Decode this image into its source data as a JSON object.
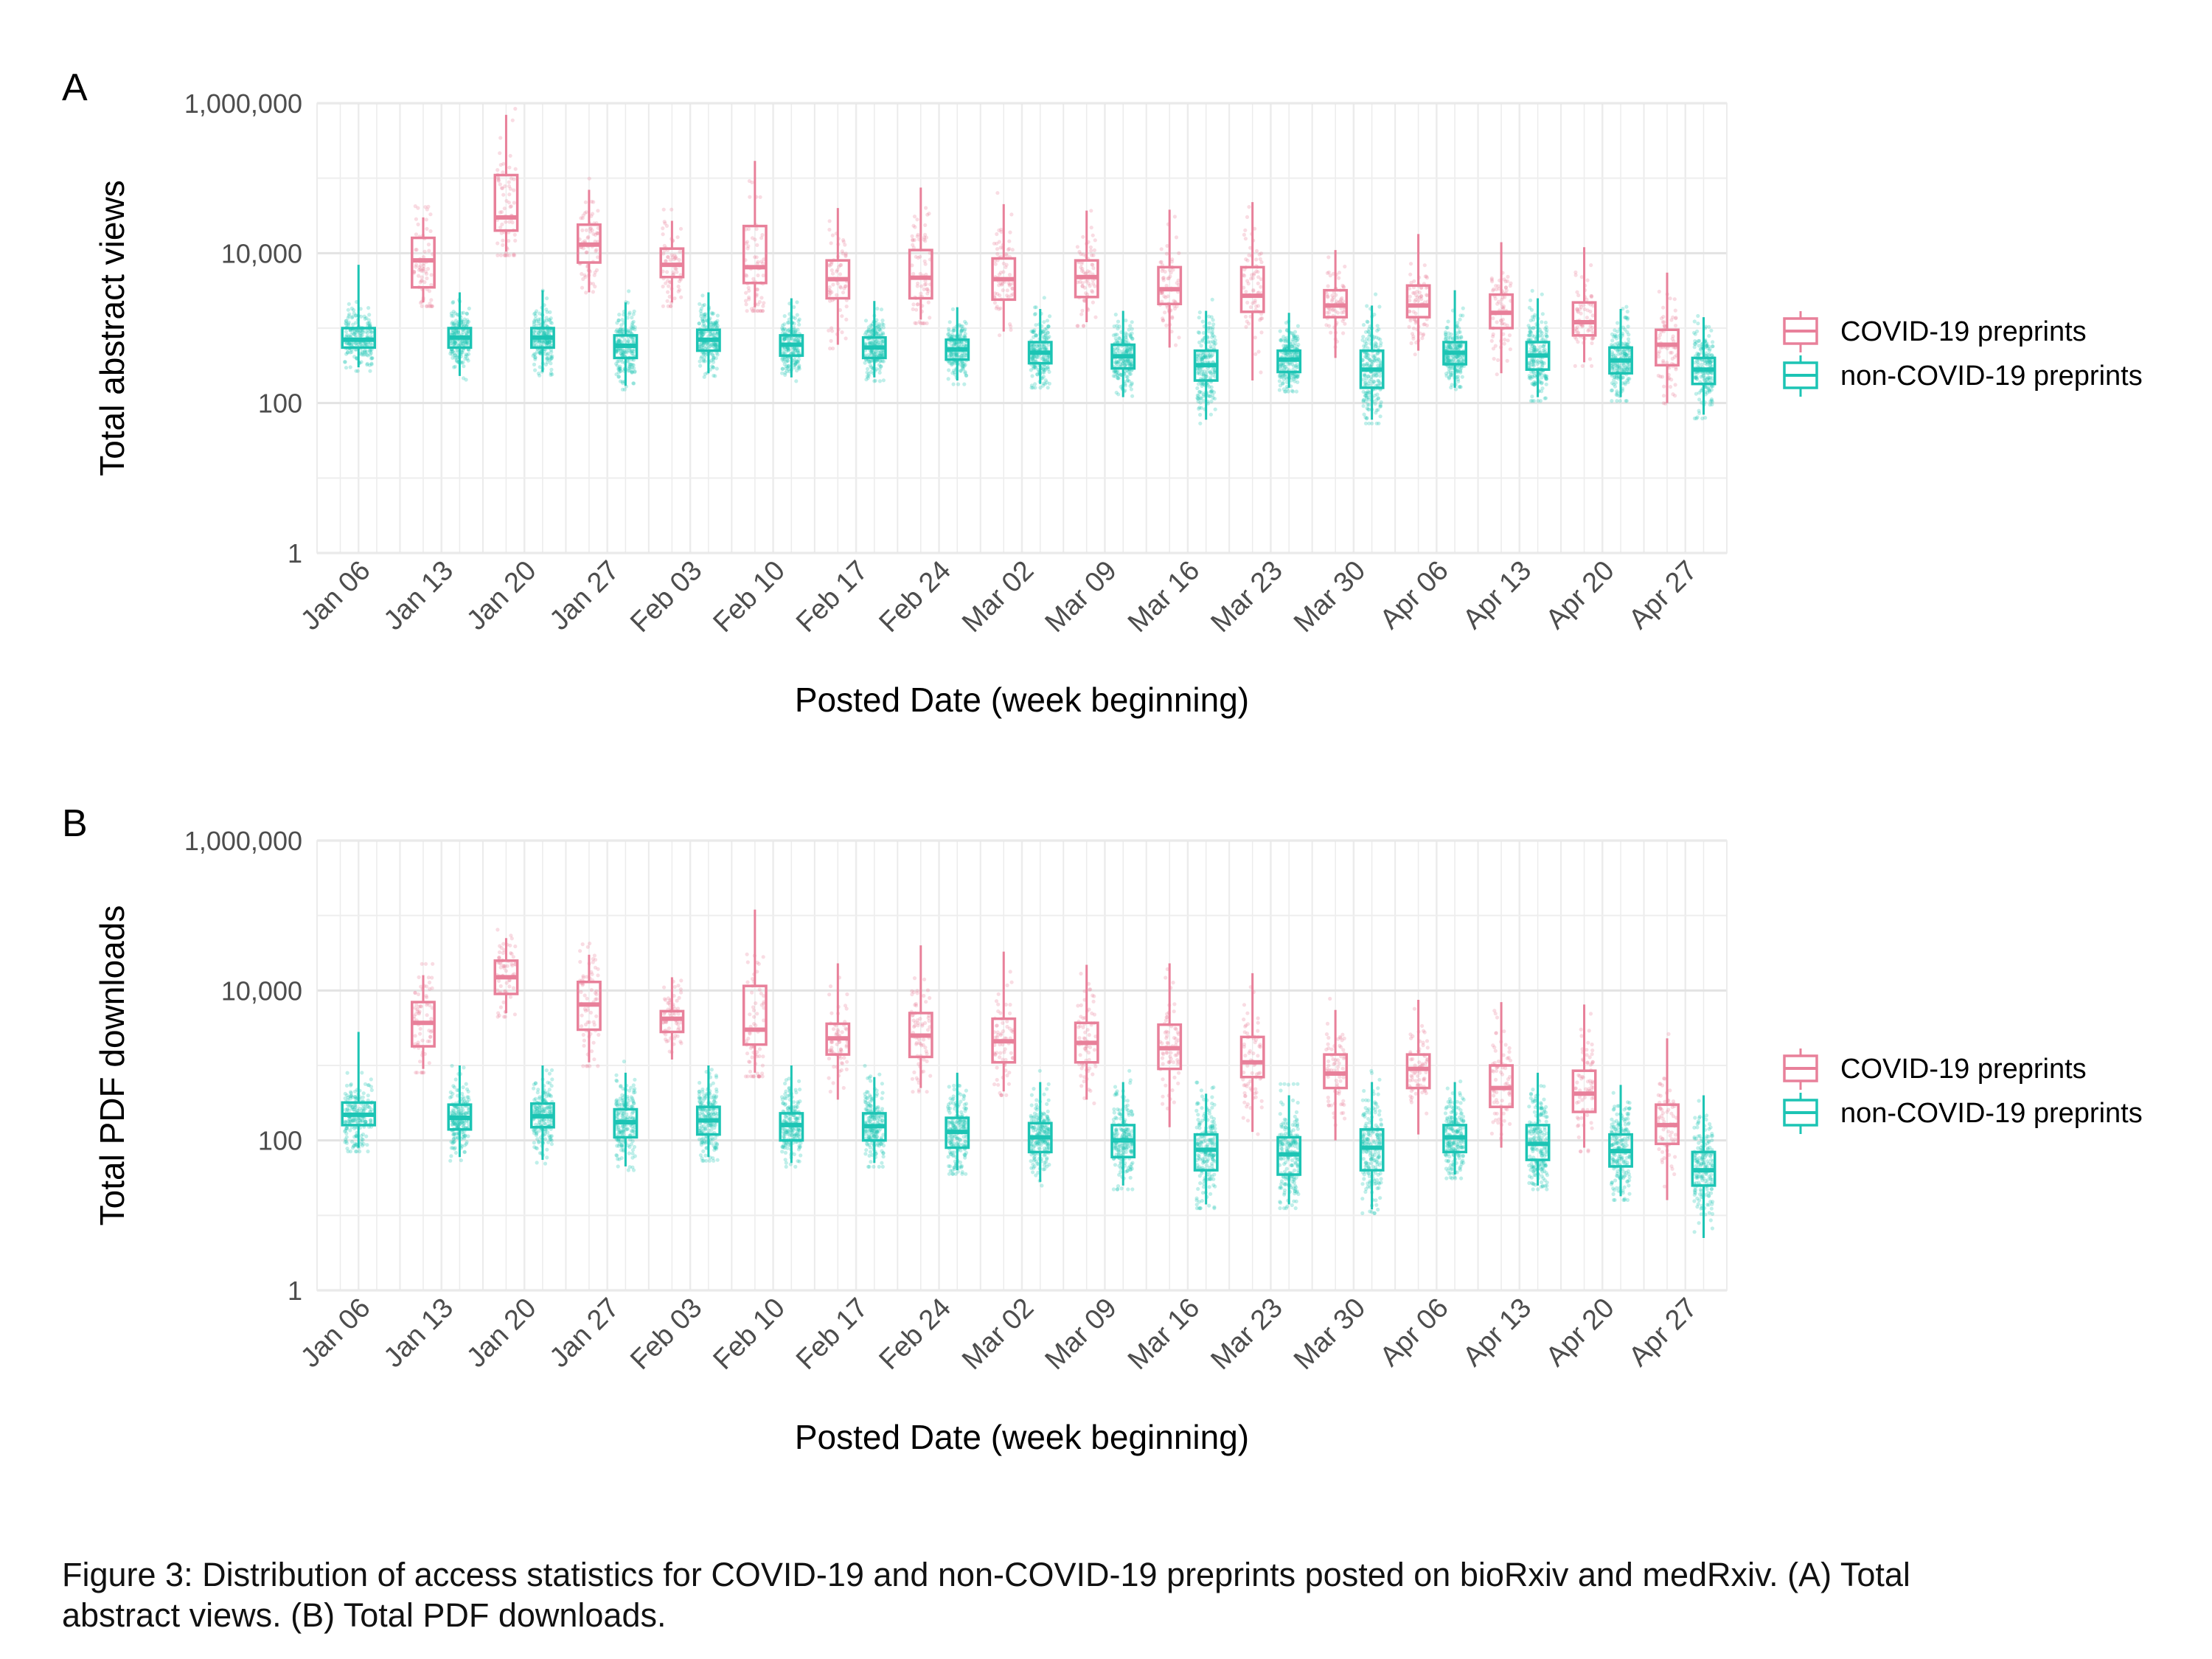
{
  "chart_data": [
    {
      "panel": "A",
      "type": "boxplot",
      "title": "",
      "xlabel": "Posted Date (week beginning)",
      "ylabel": "Total abstract views",
      "y_scale": "log10",
      "ylim": [
        1,
        1000000
      ],
      "y_ticks": [
        1,
        100,
        10000,
        1000000
      ],
      "y_tick_labels": [
        "1",
        "100",
        "10,000",
        "1,000,000"
      ],
      "categories": [
        "Jan 06",
        "Jan 13",
        "Jan 20",
        "Jan 27",
        "Feb 03",
        "Feb 10",
        "Feb 17",
        "Feb 24",
        "Mar 02",
        "Mar 09",
        "Mar 16",
        "Mar 23",
        "Mar 30",
        "Apr 06",
        "Apr 13",
        "Apr 20",
        "Apr 27"
      ],
      "grid": true,
      "legend_position": "right",
      "series": [
        {
          "name": "COVID-19 preprints",
          "color": "#E8809A",
          "boxes": [
            null,
            {
              "min": 2200,
              "q1": 3500,
              "median": 8000,
              "q3": 16000,
              "max": 30000
            },
            {
              "min": 10500,
              "q1": 20000,
              "median": 30000,
              "q3": 110000,
              "max": 700000
            },
            {
              "min": 3000,
              "q1": 7500,
              "median": 13000,
              "q3": 24000,
              "max": 70000
            },
            {
              "min": 2200,
              "q1": 4800,
              "median": 7000,
              "q3": 11500,
              "max": 27000
            },
            {
              "min": 1900,
              "q1": 4000,
              "median": 6500,
              "q3": 23000,
              "max": 170000
            },
            {
              "min": 600,
              "q1": 2500,
              "median": 4500,
              "q3": 8000,
              "max": 40000
            },
            {
              "min": 1300,
              "q1": 2500,
              "median": 4700,
              "q3": 11000,
              "max": 75000
            },
            {
              "min": 900,
              "q1": 2400,
              "median": 4500,
              "q3": 8500,
              "max": 45000
            },
            {
              "min": 1200,
              "q1": 2600,
              "median": 4800,
              "q3": 8000,
              "max": 37000
            },
            {
              "min": 550,
              "q1": 2100,
              "median": 3300,
              "q3": 6500,
              "max": 38000
            },
            {
              "min": 200,
              "q1": 1650,
              "median": 2700,
              "q3": 6500,
              "max": 48000
            },
            {
              "min": 400,
              "q1": 1400,
              "median": 2000,
              "q3": 3200,
              "max": 11000
            },
            {
              "min": 500,
              "q1": 1400,
              "median": 2000,
              "q3": 3700,
              "max": 18000
            },
            {
              "min": 250,
              "q1": 1000,
              "median": 1600,
              "q3": 2800,
              "max": 14000
            },
            {
              "min": 350,
              "q1": 800,
              "median": 1200,
              "q3": 2200,
              "max": 12000
            },
            {
              "min": 100,
              "q1": 320,
              "median": 600,
              "q3": 950,
              "max": 5500
            }
          ]
        },
        {
          "name": "non-COVID-19 preprints",
          "color": "#1CC4B4",
          "boxes": [
            {
              "min": 300,
              "q1": 550,
              "median": 700,
              "q3": 1000,
              "max": 7000
            },
            {
              "min": 230,
              "q1": 550,
              "median": 750,
              "q3": 1000,
              "max": 3000
            },
            {
              "min": 260,
              "q1": 550,
              "median": 750,
              "q3": 1000,
              "max": 3200
            },
            {
              "min": 170,
              "q1": 400,
              "median": 580,
              "q3": 800,
              "max": 2200
            },
            {
              "min": 250,
              "q1": 500,
              "median": 700,
              "q3": 950,
              "max": 3000
            },
            {
              "min": 220,
              "q1": 430,
              "median": 600,
              "q3": 800,
              "max": 2500
            },
            {
              "min": 220,
              "q1": 400,
              "median": 550,
              "q3": 750,
              "max": 2300
            },
            {
              "min": 200,
              "q1": 380,
              "median": 520,
              "q3": 700,
              "max": 1900
            },
            {
              "min": 180,
              "q1": 340,
              "median": 470,
              "q3": 650,
              "max": 1800
            },
            {
              "min": 120,
              "q1": 290,
              "median": 420,
              "q3": 600,
              "max": 1700
            },
            {
              "min": 60,
              "q1": 200,
              "median": 320,
              "q3": 500,
              "max": 1700
            },
            {
              "min": 160,
              "q1": 260,
              "median": 380,
              "q3": 500,
              "max": 1600
            },
            {
              "min": 60,
              "q1": 160,
              "median": 280,
              "q3": 500,
              "max": 2000
            },
            {
              "min": 160,
              "q1": 330,
              "median": 470,
              "q3": 650,
              "max": 3200
            },
            {
              "min": 120,
              "q1": 280,
              "median": 430,
              "q3": 650,
              "max": 2500
            },
            {
              "min": 120,
              "q1": 250,
              "median": 370,
              "q3": 550,
              "max": 1800
            },
            {
              "min": 70,
              "q1": 180,
              "median": 280,
              "q3": 400,
              "max": 1400
            }
          ]
        }
      ]
    },
    {
      "panel": "B",
      "type": "boxplot",
      "title": "",
      "xlabel": "Posted Date (week beginning)",
      "ylabel": "Total PDF downloads",
      "y_scale": "log10",
      "ylim": [
        1,
        1000000
      ],
      "y_ticks": [
        1,
        100,
        10000,
        1000000
      ],
      "y_tick_labels": [
        "1",
        "100",
        "10,000",
        "1,000,000"
      ],
      "categories": [
        "Jan 06",
        "Jan 13",
        "Jan 20",
        "Jan 27",
        "Feb 03",
        "Feb 10",
        "Feb 17",
        "Feb 24",
        "Mar 02",
        "Mar 09",
        "Mar 16",
        "Mar 23",
        "Mar 30",
        "Apr 06",
        "Apr 13",
        "Apr 20",
        "Apr 27"
      ],
      "grid": true,
      "legend_position": "right",
      "series": [
        {
          "name": "COVID-19 preprints",
          "color": "#E8809A",
          "boxes": [
            null,
            {
              "min": 900,
              "q1": 1800,
              "median": 3700,
              "q3": 7000,
              "max": 16000
            },
            {
              "min": 5000,
              "q1": 9000,
              "median": 15000,
              "q3": 25000,
              "max": 50000
            },
            {
              "min": 1100,
              "q1": 3000,
              "median": 6500,
              "q3": 13000,
              "max": 30000
            },
            {
              "min": 1200,
              "q1": 2800,
              "median": 4200,
              "q3": 5300,
              "max": 15000
            },
            {
              "min": 800,
              "q1": 1900,
              "median": 3000,
              "q3": 11500,
              "max": 120000
            },
            {
              "min": 350,
              "q1": 1400,
              "median": 2300,
              "q3": 3600,
              "max": 23000
            },
            {
              "min": 500,
              "q1": 1300,
              "median": 2500,
              "q3": 5000,
              "max": 40000
            },
            {
              "min": 450,
              "q1": 1100,
              "median": 2100,
              "q3": 4200,
              "max": 33000
            },
            {
              "min": 350,
              "q1": 1100,
              "median": 2000,
              "q3": 3700,
              "max": 22000
            },
            {
              "min": 150,
              "q1": 900,
              "median": 1700,
              "q3": 3500,
              "max": 23000
            },
            {
              "min": 130,
              "q1": 700,
              "median": 1100,
              "q3": 2400,
              "max": 17000
            },
            {
              "min": 100,
              "q1": 500,
              "median": 780,
              "q3": 1400,
              "max": 5500
            },
            {
              "min": 120,
              "q1": 500,
              "median": 900,
              "q3": 1400,
              "max": 7500
            },
            {
              "min": 80,
              "q1": 280,
              "median": 500,
              "q3": 1000,
              "max": 7000
            },
            {
              "min": 80,
              "q1": 240,
              "median": 420,
              "q3": 850,
              "max": 6500
            },
            {
              "min": 16,
              "q1": 90,
              "median": 160,
              "q3": 300,
              "max": 2300
            }
          ]
        },
        {
          "name": "non-COVID-19 preprints",
          "color": "#1CC4B4",
          "boxes": [
            {
              "min": 80,
              "q1": 160,
              "median": 220,
              "q3": 320,
              "max": 2800
            },
            {
              "min": 60,
              "q1": 140,
              "median": 200,
              "q3": 300,
              "max": 1000
            },
            {
              "min": 55,
              "q1": 150,
              "median": 210,
              "q3": 310,
              "max": 1000
            },
            {
              "min": 45,
              "q1": 110,
              "median": 175,
              "q3": 260,
              "max": 800
            },
            {
              "min": 60,
              "q1": 120,
              "median": 185,
              "q3": 280,
              "max": 1000
            },
            {
              "min": 50,
              "q1": 100,
              "median": 160,
              "q3": 230,
              "max": 1000
            },
            {
              "min": 50,
              "q1": 100,
              "median": 155,
              "q3": 230,
              "max": 700
            },
            {
              "min": 40,
              "q1": 80,
              "median": 130,
              "q3": 200,
              "max": 800
            },
            {
              "min": 28,
              "q1": 70,
              "median": 110,
              "q3": 170,
              "max": 600
            },
            {
              "min": 25,
              "q1": 60,
              "median": 100,
              "q3": 160,
              "max": 600
            },
            {
              "min": 14,
              "q1": 40,
              "median": 75,
              "q3": 120,
              "max": 420
            },
            {
              "min": 14,
              "q1": 35,
              "median": 65,
              "q3": 110,
              "max": 400
            },
            {
              "min": 12,
              "q1": 40,
              "median": 80,
              "q3": 140,
              "max": 600
            },
            {
              "min": 35,
              "q1": 70,
              "median": 110,
              "q3": 160,
              "max": 600
            },
            {
              "min": 25,
              "q1": 55,
              "median": 90,
              "q3": 160,
              "max": 800
            },
            {
              "min": 18,
              "q1": 45,
              "median": 72,
              "q3": 120,
              "max": 550
            },
            {
              "min": 5,
              "q1": 25,
              "median": 40,
              "q3": 70,
              "max": 400
            }
          ]
        }
      ]
    }
  ],
  "caption": {
    "line1": "Figure 3: Distribution of access statistics for COVID-19 and non-COVID-19 preprints posted on bioRxiv and medRxiv. (A) Total",
    "line2": "abstract views. (B) Total PDF downloads."
  }
}
